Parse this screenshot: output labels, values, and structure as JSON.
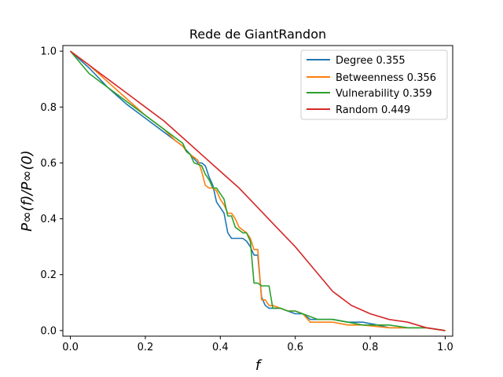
{
  "chart_data": {
    "type": "line",
    "title": "Rede de GiantRandon",
    "xlabel": "f",
    "ylabel": "P∞(f)/P∞(0)",
    "xlim": [
      -0.02,
      1.02
    ],
    "ylim": [
      -0.02,
      1.02
    ],
    "x_ticks": [
      0.0,
      0.2,
      0.4,
      0.6,
      0.8,
      1.0
    ],
    "x_tick_labels": [
      "0.0",
      "0.2",
      "0.4",
      "0.6",
      "0.8",
      "1.0"
    ],
    "y_ticks": [
      0.0,
      0.2,
      0.4,
      0.6,
      0.8,
      1.0
    ],
    "y_tick_labels": [
      "0.0",
      "0.2",
      "0.4",
      "0.6",
      "0.8",
      "1.0"
    ],
    "grid": false,
    "legend_position": "top-right",
    "series": [
      {
        "name": "Degree 0.355",
        "color": "#1f77b4",
        "x": [
          0.0,
          0.05,
          0.1,
          0.15,
          0.2,
          0.25,
          0.28,
          0.3,
          0.32,
          0.34,
          0.35,
          0.36,
          0.37,
          0.38,
          0.39,
          0.4,
          0.41,
          0.42,
          0.43,
          0.44,
          0.46,
          0.47,
          0.48,
          0.49,
          0.5,
          0.51,
          0.52,
          0.53,
          0.54,
          0.56,
          0.58,
          0.6,
          0.62,
          0.64,
          0.66,
          0.7,
          0.74,
          0.78,
          0.82,
          0.85,
          0.9,
          0.95,
          1.0
        ],
        "y": [
          1.0,
          0.94,
          0.87,
          0.81,
          0.76,
          0.71,
          0.68,
          0.66,
          0.63,
          0.6,
          0.6,
          0.59,
          0.55,
          0.52,
          0.46,
          0.44,
          0.42,
          0.35,
          0.33,
          0.33,
          0.33,
          0.32,
          0.3,
          0.27,
          0.27,
          0.12,
          0.09,
          0.08,
          0.08,
          0.08,
          0.07,
          0.06,
          0.06,
          0.04,
          0.04,
          0.04,
          0.03,
          0.03,
          0.02,
          0.01,
          0.01,
          0.01,
          0.0
        ]
      },
      {
        "name": "Betweenness 0.356",
        "color": "#ff7f0e",
        "x": [
          0.0,
          0.05,
          0.1,
          0.15,
          0.2,
          0.22,
          0.25,
          0.28,
          0.3,
          0.31,
          0.32,
          0.34,
          0.35,
          0.36,
          0.37,
          0.38,
          0.39,
          0.4,
          0.41,
          0.42,
          0.43,
          0.44,
          0.45,
          0.46,
          0.47,
          0.48,
          0.49,
          0.5,
          0.51,
          0.52,
          0.53,
          0.54,
          0.56,
          0.58,
          0.6,
          0.62,
          0.64,
          0.66,
          0.7,
          0.74,
          0.78,
          0.85,
          0.9,
          0.95,
          1.0
        ],
        "y": [
          1.0,
          0.95,
          0.89,
          0.83,
          0.77,
          0.75,
          0.72,
          0.68,
          0.66,
          0.64,
          0.63,
          0.61,
          0.57,
          0.52,
          0.51,
          0.51,
          0.5,
          0.47,
          0.45,
          0.42,
          0.42,
          0.4,
          0.37,
          0.36,
          0.35,
          0.33,
          0.29,
          0.29,
          0.11,
          0.11,
          0.09,
          0.09,
          0.08,
          0.07,
          0.07,
          0.06,
          0.03,
          0.03,
          0.03,
          0.02,
          0.02,
          0.01,
          0.01,
          0.01,
          0.0
        ]
      },
      {
        "name": "Vulnerability 0.359",
        "color": "#2ca02c",
        "x": [
          0.0,
          0.05,
          0.1,
          0.15,
          0.2,
          0.25,
          0.28,
          0.3,
          0.31,
          0.32,
          0.33,
          0.35,
          0.36,
          0.37,
          0.38,
          0.39,
          0.4,
          0.41,
          0.42,
          0.43,
          0.44,
          0.46,
          0.47,
          0.48,
          0.49,
          0.5,
          0.51,
          0.52,
          0.53,
          0.54,
          0.56,
          0.58,
          0.6,
          0.62,
          0.64,
          0.66,
          0.7,
          0.74,
          0.78,
          0.85,
          0.9,
          0.95,
          1.0
        ],
        "y": [
          1.0,
          0.92,
          0.87,
          0.82,
          0.77,
          0.72,
          0.69,
          0.67,
          0.64,
          0.63,
          0.6,
          0.59,
          0.56,
          0.54,
          0.51,
          0.51,
          0.49,
          0.47,
          0.41,
          0.41,
          0.37,
          0.35,
          0.35,
          0.32,
          0.17,
          0.17,
          0.16,
          0.16,
          0.16,
          0.08,
          0.08,
          0.07,
          0.07,
          0.06,
          0.05,
          0.04,
          0.04,
          0.03,
          0.02,
          0.02,
          0.01,
          0.01,
          0.0
        ]
      },
      {
        "name": "Random 0.449",
        "color": "#d62728",
        "x": [
          0.0,
          0.05,
          0.1,
          0.15,
          0.2,
          0.25,
          0.3,
          0.35,
          0.4,
          0.45,
          0.5,
          0.55,
          0.6,
          0.65,
          0.7,
          0.72,
          0.75,
          0.8,
          0.85,
          0.9,
          0.95,
          1.0
        ],
        "y": [
          1.0,
          0.95,
          0.9,
          0.85,
          0.8,
          0.75,
          0.69,
          0.63,
          0.57,
          0.51,
          0.44,
          0.37,
          0.3,
          0.22,
          0.14,
          0.12,
          0.09,
          0.06,
          0.04,
          0.03,
          0.01,
          0.0
        ]
      }
    ]
  }
}
